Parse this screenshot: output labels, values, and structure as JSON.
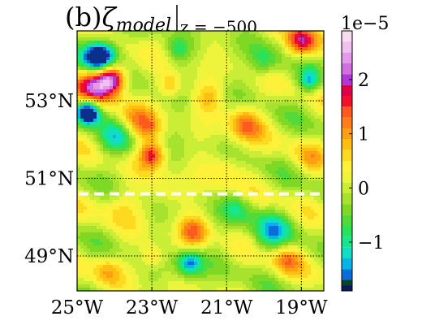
{
  "chart_data": {
    "type": "heatmap",
    "panel_label": "(b)",
    "title_symbol": "ζ",
    "title_subscript": "model",
    "title_condition": "z = −500",
    "x_ticks": [
      {
        "value": -25,
        "label": "25°W"
      },
      {
        "value": -23,
        "label": "23°W"
      },
      {
        "value": -21,
        "label": "21°W"
      },
      {
        "value": -19,
        "label": "19°W"
      }
    ],
    "y_ticks": [
      {
        "value": 49,
        "label": "49°N"
      },
      {
        "value": 51,
        "label": "51°N"
      },
      {
        "value": 53,
        "label": "53°N"
      }
    ],
    "xlim": [
      -25.0,
      -18.4
    ],
    "ylim": [
      48.1,
      54.8
    ],
    "grid": "dotted",
    "colorbar": {
      "multiplier_label": "1e−5",
      "range": [
        -1.9,
        2.9
      ],
      "tick_labels": [
        {
          "value": 2,
          "label": "2"
        },
        {
          "value": 1,
          "label": "1"
        },
        {
          "value": 0,
          "label": "0"
        },
        {
          "value": -1,
          "label": "−1"
        }
      ],
      "levels": [
        {
          "lo": 2.7,
          "color": "#f9dcf2"
        },
        {
          "lo": 2.5,
          "color": "#f1bff0"
        },
        {
          "lo": 2.3,
          "color": "#e49ae8"
        },
        {
          "lo": 2.1,
          "color": "#d070e0"
        },
        {
          "lo": 1.9,
          "color": "#b336d6"
        },
        {
          "lo": 1.7,
          "color": "#e0004a"
        },
        {
          "lo": 1.5,
          "color": "#f2102c"
        },
        {
          "lo": 1.3,
          "color": "#ff5a1e"
        },
        {
          "lo": 1.1,
          "color": "#ff7e19"
        },
        {
          "lo": 0.9,
          "color": "#ff9f12"
        },
        {
          "lo": 0.7,
          "color": "#ffbe10"
        },
        {
          "lo": 0.5,
          "color": "#ffd820"
        },
        {
          "lo": 0.3,
          "color": "#fff03a"
        },
        {
          "lo": 0.1,
          "color": "#eef33c"
        },
        {
          "lo": -0.1,
          "color": "#c9ee35"
        },
        {
          "lo": -0.3,
          "color": "#a7e22e"
        },
        {
          "lo": -0.5,
          "color": "#7ed824"
        },
        {
          "lo": -0.7,
          "color": "#52d93a"
        },
        {
          "lo": -0.9,
          "color": "#27e25a"
        },
        {
          "lo": -1.1,
          "color": "#18e68c"
        },
        {
          "lo": -1.3,
          "color": "#10ddc4"
        },
        {
          "lo": -1.5,
          "color": "#08b4e6"
        },
        {
          "lo": -1.7,
          "color": "#0a6cd8"
        },
        {
          "lo": -1.9,
          "color": "#0b2f8a"
        }
      ],
      "bottom_levels": [
        {
          "color": "#0a4426"
        },
        {
          "color": "#0a1a5e"
        }
      ]
    },
    "features": [
      {
        "lon": -24.4,
        "lat": 54.1,
        "amp": -2.9,
        "r": 0.45
      },
      {
        "lon": -24.1,
        "lat": 53.6,
        "amp": 2.6,
        "r": 0.4
      },
      {
        "lon": -24.6,
        "lat": 53.4,
        "amp": 1.6,
        "r": 0.5
      },
      {
        "lon": -24.7,
        "lat": 52.7,
        "amp": -2.7,
        "r": 0.3
      },
      {
        "lon": -23.0,
        "lat": 51.6,
        "amp": 1.6,
        "r": 0.35
      },
      {
        "lon": -23.1,
        "lat": 52.3,
        "amp": 0.9,
        "r": 0.35
      },
      {
        "lon": -23.5,
        "lat": 52.5,
        "amp": 0.8,
        "r": 0.4
      },
      {
        "lon": -24.0,
        "lat": 52.0,
        "amp": -0.9,
        "r": 0.45
      },
      {
        "lon": -19.0,
        "lat": 54.5,
        "amp": 1.9,
        "r": 0.4
      },
      {
        "lon": -20.5,
        "lat": 52.4,
        "amp": 1.2,
        "r": 0.45
      },
      {
        "lon": -21.5,
        "lat": 53.1,
        "amp": 0.7,
        "r": 0.4
      },
      {
        "lon": -22.5,
        "lat": 53.4,
        "amp": 0.9,
        "r": 0.3
      },
      {
        "lon": -21.9,
        "lat": 49.6,
        "amp": 1.2,
        "r": 0.4
      },
      {
        "lon": -22.0,
        "lat": 48.8,
        "amp": -1.6,
        "r": 0.35
      },
      {
        "lon": -19.4,
        "lat": 48.9,
        "amp": 1.0,
        "r": 0.4
      },
      {
        "lon": -19.8,
        "lat": 49.6,
        "amp": -1.1,
        "r": 0.5
      },
      {
        "lon": -24.2,
        "lat": 48.6,
        "amp": 0.7,
        "r": 0.4
      },
      {
        "lon": -23.0,
        "lat": 49.0,
        "amp": 0.7,
        "r": 0.3
      },
      {
        "lon": -18.8,
        "lat": 53.5,
        "amp": -1.3,
        "r": 0.3
      },
      {
        "lon": -18.8,
        "lat": 51.5,
        "amp": 0.6,
        "r": 0.4
      },
      {
        "lon": -20.0,
        "lat": 54.0,
        "amp": -0.8,
        "r": 0.4
      },
      {
        "lon": -22.3,
        "lat": 54.3,
        "amp": -0.7,
        "r": 0.3
      },
      {
        "lon": -21.0,
        "lat": 51.2,
        "amp": 0.5,
        "r": 0.5
      },
      {
        "lon": -23.8,
        "lat": 50.3,
        "amp": 0.5,
        "r": 0.5
      },
      {
        "lon": -20.7,
        "lat": 50.2,
        "amp": -0.7,
        "r": 0.4
      },
      {
        "lon": -22.6,
        "lat": 50.7,
        "amp": 0.4,
        "r": 0.45
      }
    ],
    "section_line": {
      "lat": 50.6,
      "style": "dashed",
      "color": "#ffffff"
    }
  }
}
